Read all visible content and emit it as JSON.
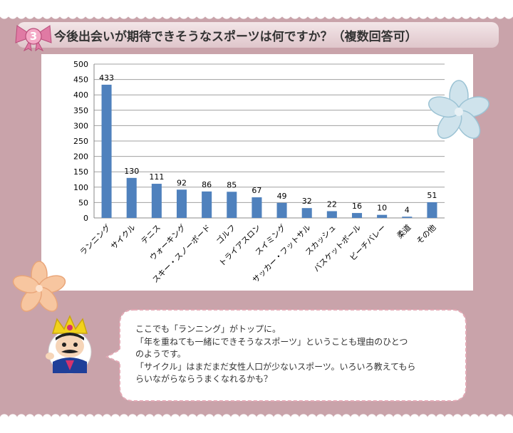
{
  "header": {
    "number": "3",
    "title": "今後出会いが期待できそうなスポーツは何ですか？（複数回答可）"
  },
  "chart_data": {
    "type": "bar",
    "categories": [
      "ランニング",
      "サイクル",
      "テニス",
      "ウォーキング",
      "スキー・スノーボード",
      "ゴルフ",
      "トライアスロン",
      "スイミング",
      "サッカー・フットサル",
      "スカッシュ",
      "バスケットボール",
      "ビーチバレー",
      "柔道",
      "その他"
    ],
    "values": [
      433,
      130,
      111,
      92,
      86,
      85,
      67,
      49,
      32,
      22,
      16,
      10,
      4,
      51
    ],
    "ylim": [
      0,
      500
    ],
    "yticks": [
      0,
      50,
      100,
      150,
      200,
      250,
      300,
      350,
      400,
      450,
      500
    ],
    "grid": true,
    "bar_color": "#4f81bd"
  },
  "comment": {
    "lines": [
      "ここでも「ランニング」がトップに。",
      "「年を重ねても一緒にできそうなスポーツ」ということも理由のひとつ",
      "のようです。",
      "「サイクル」はまだまだ女性人口が少ないスポーツ。いろいろ教えてもら",
      "らいながらならうまくなれるかも？"
    ]
  },
  "colors": {
    "background": "#c9a3aa",
    "bow": "#e07aa4",
    "accent": "#d6336c"
  }
}
